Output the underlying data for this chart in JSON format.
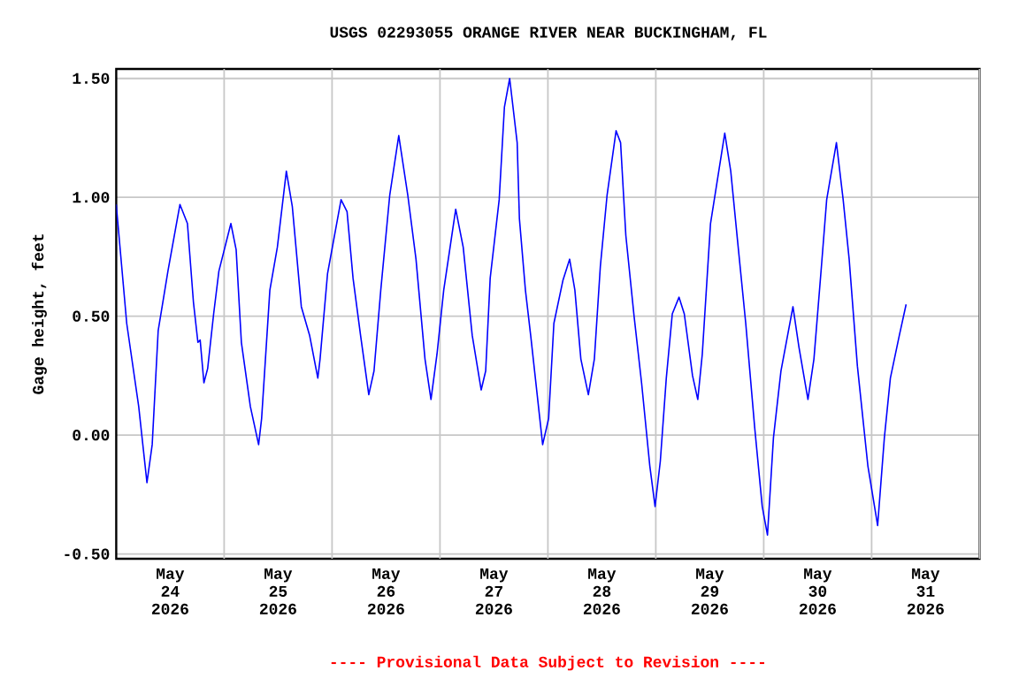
{
  "chart_data": {
    "type": "line",
    "title": "USGS 02293055 ORANGE RIVER NEAR BUCKINGHAM, FL",
    "ylabel": "Gage height, feet",
    "annotations": [
      "---- Provisional Data Subject to Revision ----"
    ],
    "x": [
      "2026-05-24T00:00",
      "2026-05-24T02:20",
      "2026-05-24T05:00",
      "2026-05-24T06:50",
      "2026-05-24T08:00",
      "2026-05-24T09:20",
      "2026-05-24T11:30",
      "2026-05-24T14:10",
      "2026-05-24T15:50",
      "2026-05-24T17:10",
      "2026-05-24T18:10",
      "2026-05-24T18:40",
      "2026-05-24T19:30",
      "2026-05-24T20:20",
      "2026-05-24T21:40",
      "2026-05-24T22:50",
      "2026-05-25T01:30",
      "2026-05-25T02:40",
      "2026-05-25T03:50",
      "2026-05-25T05:50",
      "2026-05-25T07:40",
      "2026-05-25T08:20",
      "2026-05-25T10:10",
      "2026-05-25T11:50",
      "2026-05-25T13:50",
      "2026-05-25T15:10",
      "2026-05-25T17:10",
      "2026-05-25T19:00",
      "2026-05-25T20:50",
      "2026-05-25T21:20",
      "2026-05-25T23:00",
      "2026-05-26T02:00",
      "2026-05-26T03:20",
      "2026-05-26T04:40",
      "2026-05-26T06:20",
      "2026-05-26T08:10",
      "2026-05-26T09:20",
      "2026-05-26T10:50",
      "2026-05-26T12:50",
      "2026-05-26T14:50",
      "2026-05-26T16:50",
      "2026-05-26T18:40",
      "2026-05-26T20:40",
      "2026-05-26T22:00",
      "2026-05-26T23:20",
      "2026-05-27T00:50",
      "2026-05-27T03:30",
      "2026-05-27T05:10",
      "2026-05-27T07:10",
      "2026-05-27T09:10",
      "2026-05-27T10:10",
      "2026-05-27T11:10",
      "2026-05-27T13:10",
      "2026-05-27T14:20",
      "2026-05-27T15:30",
      "2026-05-27T17:10",
      "2026-05-27T17:40",
      "2026-05-27T19:00",
      "2026-05-27T20:10",
      "2026-05-27T22:50",
      "2026-05-28T00:10",
      "2026-05-28T01:20",
      "2026-05-28T03:20",
      "2026-05-28T04:50",
      "2026-05-28T06:00",
      "2026-05-28T07:20",
      "2026-05-28T09:00",
      "2026-05-28T10:20",
      "2026-05-28T11:40",
      "2026-05-28T13:10",
      "2026-05-28T15:10",
      "2026-05-28T16:10",
      "2026-05-28T17:20",
      "2026-05-28T19:10",
      "2026-05-28T20:50",
      "2026-05-28T22:40",
      "2026-05-28T23:50",
      "2026-05-29T01:00",
      "2026-05-29T02:20",
      "2026-05-29T03:40",
      "2026-05-29T05:10",
      "2026-05-29T06:20",
      "2026-05-29T08:10",
      "2026-05-29T09:20",
      "2026-05-29T10:20",
      "2026-05-29T12:10",
      "2026-05-29T15:20",
      "2026-05-29T16:40",
      "2026-05-29T18:10",
      "2026-05-29T20:00",
      "2026-05-29T22:00",
      "2026-05-29T23:40",
      "2026-05-30T00:50",
      "2026-05-30T02:10",
      "2026-05-30T03:50",
      "2026-05-30T06:30",
      "2026-05-30T07:50",
      "2026-05-30T09:50",
      "2026-05-30T11:10",
      "2026-05-30T12:50",
      "2026-05-30T14:00",
      "2026-05-30T16:10",
      "2026-05-30T17:40",
      "2026-05-30T19:00",
      "2026-05-30T20:50",
      "2026-05-30T23:10",
      "2026-05-31T01:20",
      "2026-05-31T02:50",
      "2026-05-31T04:10",
      "2026-05-31T06:10",
      "2026-05-31T07:40"
    ],
    "series": [
      {
        "color": "#0000ff",
        "values": [
          0.97,
          0.47,
          0.12,
          -0.2,
          -0.04,
          0.44,
          0.69,
          0.97,
          0.89,
          0.56,
          0.39,
          0.4,
          0.22,
          0.28,
          0.51,
          0.69,
          0.89,
          0.78,
          0.39,
          0.12,
          -0.04,
          0.07,
          0.61,
          0.79,
          1.11,
          0.96,
          0.54,
          0.42,
          0.24,
          0.32,
          0.68,
          0.99,
          0.94,
          0.66,
          0.42,
          0.17,
          0.27,
          0.61,
          1.01,
          1.26,
          1.01,
          0.74,
          0.32,
          0.15,
          0.34,
          0.61,
          0.95,
          0.79,
          0.42,
          0.19,
          0.27,
          0.66,
          0.99,
          1.38,
          1.5,
          1.23,
          0.91,
          0.61,
          0.42,
          -0.04,
          0.07,
          0.47,
          0.65,
          0.74,
          0.61,
          0.32,
          0.17,
          0.32,
          0.71,
          1.01,
          1.28,
          1.23,
          0.84,
          0.5,
          0.22,
          -0.13,
          -0.3,
          -0.11,
          0.24,
          0.51,
          0.58,
          0.51,
          0.25,
          0.15,
          0.34,
          0.89,
          1.27,
          1.11,
          0.82,
          0.47,
          0.03,
          -0.3,
          -0.42,
          -0.01,
          0.27,
          0.54,
          0.37,
          0.15,
          0.32,
          0.71,
          0.99,
          1.23,
          0.99,
          0.74,
          0.29,
          -0.13,
          -0.38,
          -0.01,
          0.24,
          0.42,
          0.55
        ]
      }
    ],
    "xlim": [
      "2026-05-24T00:00",
      "2026-06-01T00:00"
    ],
    "xticks": [
      {
        "value": "2026-05-24T12:00",
        "label": "May 24 2026"
      },
      {
        "value": "2026-05-25T00:00",
        "label": null
      },
      {
        "value": "2026-05-25T12:00",
        "label": "May 25 2026"
      },
      {
        "value": "2026-05-26T00:00",
        "label": null
      },
      {
        "value": "2026-05-26T12:00",
        "label": "May 26 2026"
      },
      {
        "value": "2026-05-27T00:00",
        "label": null
      },
      {
        "value": "2026-05-27T12:00",
        "label": "May 27 2026"
      },
      {
        "value": "2026-05-28T00:00",
        "label": null
      },
      {
        "value": "2026-05-28T12:00",
        "label": "May 28 2026"
      },
      {
        "value": "2026-05-29T00:00",
        "label": null
      },
      {
        "value": "2026-05-29T12:00",
        "label": "May 29 2026"
      },
      {
        "value": "2026-05-30T00:00",
        "label": null
      },
      {
        "value": "2026-05-30T12:00",
        "label": "May 30 2026"
      },
      {
        "value": "2026-05-31T00:00",
        "label": null
      },
      {
        "value": "2026-05-31T12:00",
        "label": "May 31 2026"
      },
      {
        "value": "2026-06-01T00:00",
        "label": null
      }
    ],
    "ylim": [
      -0.52,
      1.54
    ],
    "yticks": [
      {
        "value": -0.5,
        "label": "-0.50"
      },
      {
        "value": 0,
        "label": "0.00"
      },
      {
        "value": 0.5,
        "label": "0.50"
      },
      {
        "value": 1.0,
        "label": "1.00"
      },
      {
        "value": 1.5,
        "label": "1.50"
      }
    ],
    "grid": true,
    "marker": "none",
    "line_style": "solid"
  }
}
